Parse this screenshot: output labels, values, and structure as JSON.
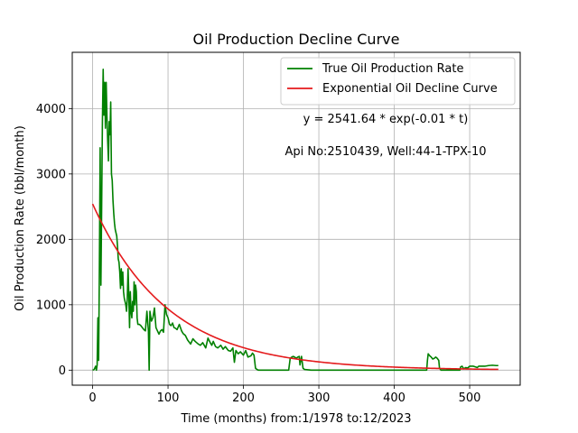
{
  "chart_data": {
    "type": "line",
    "title": "Oil Production Decline Curve",
    "xlabel": "Time (months) from:1/1978 to:12/2023",
    "ylabel": "Oil Production Rate (bbl/month)",
    "xlim": [
      -27,
      567
    ],
    "ylim": [
      -230,
      4860
    ],
    "xticks": [
      0,
      100,
      200,
      300,
      400,
      500
    ],
    "yticks": [
      0,
      1000,
      2000,
      3000,
      4000
    ],
    "grid": true,
    "legend_position": "upper right",
    "annotations": [
      "y = 2541.64 * exp(-0.01 * t)",
      "Api No:2510439, Well:44-1-TPX-10"
    ],
    "series": [
      {
        "name": "True Oil Production Rate",
        "color": "#008000",
        "points": [
          [
            0,
            0
          ],
          [
            2,
            10
          ],
          [
            4,
            60
          ],
          [
            5,
            0
          ],
          [
            6,
            80
          ],
          [
            7,
            800
          ],
          [
            8,
            150
          ],
          [
            9,
            1600
          ],
          [
            10,
            3400
          ],
          [
            11,
            1300
          ],
          [
            12,
            2500
          ],
          [
            13,
            3800
          ],
          [
            14,
            4600
          ],
          [
            15,
            3900
          ],
          [
            16,
            4400
          ],
          [
            17,
            3700
          ],
          [
            18,
            4400
          ],
          [
            19,
            3900
          ],
          [
            20,
            3500
          ],
          [
            21,
            3200
          ],
          [
            22,
            3800
          ],
          [
            23,
            3600
          ],
          [
            24,
            4100
          ],
          [
            25,
            3000
          ],
          [
            26,
            2900
          ],
          [
            27,
            2600
          ],
          [
            28,
            2400
          ],
          [
            29,
            2250
          ],
          [
            30,
            2150
          ],
          [
            31,
            2100
          ],
          [
            32,
            2050
          ],
          [
            33,
            1900
          ],
          [
            34,
            1700
          ],
          [
            35,
            1650
          ],
          [
            36,
            1500
          ],
          [
            37,
            1250
          ],
          [
            38,
            1550
          ],
          [
            39,
            1300
          ],
          [
            40,
            1500
          ],
          [
            41,
            1200
          ],
          [
            42,
            1100
          ],
          [
            43,
            1050
          ],
          [
            44,
            1000
          ],
          [
            45,
            900
          ],
          [
            46,
            1100
          ],
          [
            47,
            1550
          ],
          [
            48,
            1150
          ],
          [
            49,
            650
          ],
          [
            50,
            1200
          ],
          [
            51,
            900
          ],
          [
            52,
            800
          ],
          [
            53,
            1050
          ],
          [
            54,
            900
          ],
          [
            55,
            1350
          ],
          [
            56,
            1000
          ],
          [
            57,
            1300
          ],
          [
            58,
            1200
          ],
          [
            59,
            800
          ],
          [
            60,
            700
          ],
          [
            62,
            700
          ],
          [
            64,
            680
          ],
          [
            66,
            650
          ],
          [
            68,
            620
          ],
          [
            70,
            600
          ],
          [
            72,
            900
          ],
          [
            74,
            600
          ],
          [
            75,
            0
          ],
          [
            76,
            900
          ],
          [
            78,
            750
          ],
          [
            80,
            800
          ],
          [
            82,
            950
          ],
          [
            84,
            650
          ],
          [
            86,
            600
          ],
          [
            88,
            550
          ],
          [
            90,
            600
          ],
          [
            92,
            620
          ],
          [
            94,
            580
          ],
          [
            96,
            1000
          ],
          [
            98,
            850
          ],
          [
            100,
            800
          ],
          [
            102,
            700
          ],
          [
            104,
            680
          ],
          [
            106,
            720
          ],
          [
            108,
            650
          ],
          [
            110,
            640
          ],
          [
            112,
            620
          ],
          [
            115,
            700
          ],
          [
            118,
            600
          ],
          [
            120,
            560
          ],
          [
            123,
            530
          ],
          [
            126,
            460
          ],
          [
            130,
            400
          ],
          [
            133,
            480
          ],
          [
            136,
            440
          ],
          [
            140,
            400
          ],
          [
            143,
            380
          ],
          [
            146,
            420
          ],
          [
            150,
            340
          ],
          [
            153,
            490
          ],
          [
            156,
            420
          ],
          [
            158,
            380
          ],
          [
            160,
            440
          ],
          [
            163,
            360
          ],
          [
            166,
            340
          ],
          [
            170,
            380
          ],
          [
            173,
            320
          ],
          [
            176,
            360
          ],
          [
            180,
            300
          ],
          [
            183,
            290
          ],
          [
            186,
            340
          ],
          [
            188,
            120
          ],
          [
            190,
            300
          ],
          [
            193,
            250
          ],
          [
            196,
            280
          ],
          [
            200,
            230
          ],
          [
            203,
            300
          ],
          [
            206,
            200
          ],
          [
            210,
            220
          ],
          [
            212,
            260
          ],
          [
            214,
            230
          ],
          [
            216,
            30
          ],
          [
            218,
            10
          ],
          [
            220,
            0
          ],
          [
            240,
            0
          ],
          [
            260,
            0
          ],
          [
            262,
            180
          ],
          [
            264,
            200
          ],
          [
            266,
            210
          ],
          [
            268,
            200
          ],
          [
            270,
            180
          ],
          [
            272,
            200
          ],
          [
            274,
            210
          ],
          [
            275,
            80
          ],
          [
            277,
            210
          ],
          [
            279,
            30
          ],
          [
            281,
            10
          ],
          [
            290,
            0
          ],
          [
            320,
            0
          ],
          [
            350,
            0
          ],
          [
            400,
            0
          ],
          [
            440,
            0
          ],
          [
            443,
            0
          ],
          [
            444,
            150
          ],
          [
            445,
            250
          ],
          [
            447,
            220
          ],
          [
            449,
            200
          ],
          [
            451,
            170
          ],
          [
            453,
            180
          ],
          [
            455,
            200
          ],
          [
            457,
            180
          ],
          [
            459,
            150
          ],
          [
            460,
            30
          ],
          [
            462,
            0
          ],
          [
            480,
            0
          ],
          [
            487,
            0
          ],
          [
            488,
            50
          ],
          [
            490,
            60
          ],
          [
            492,
            20
          ],
          [
            495,
            40
          ],
          [
            497,
            30
          ],
          [
            500,
            60
          ],
          [
            505,
            60
          ],
          [
            510,
            40
          ],
          [
            512,
            60
          ],
          [
            520,
            60
          ],
          [
            525,
            70
          ],
          [
            530,
            75
          ],
          [
            535,
            70
          ],
          [
            538,
            70
          ]
        ]
      },
      {
        "name": "Exponential Oil Decline Curve",
        "color": "#e41a1c",
        "model": {
          "a": 2541.64,
          "k": 0.01,
          "t_start": 0,
          "t_end": 538
        }
      }
    ]
  }
}
